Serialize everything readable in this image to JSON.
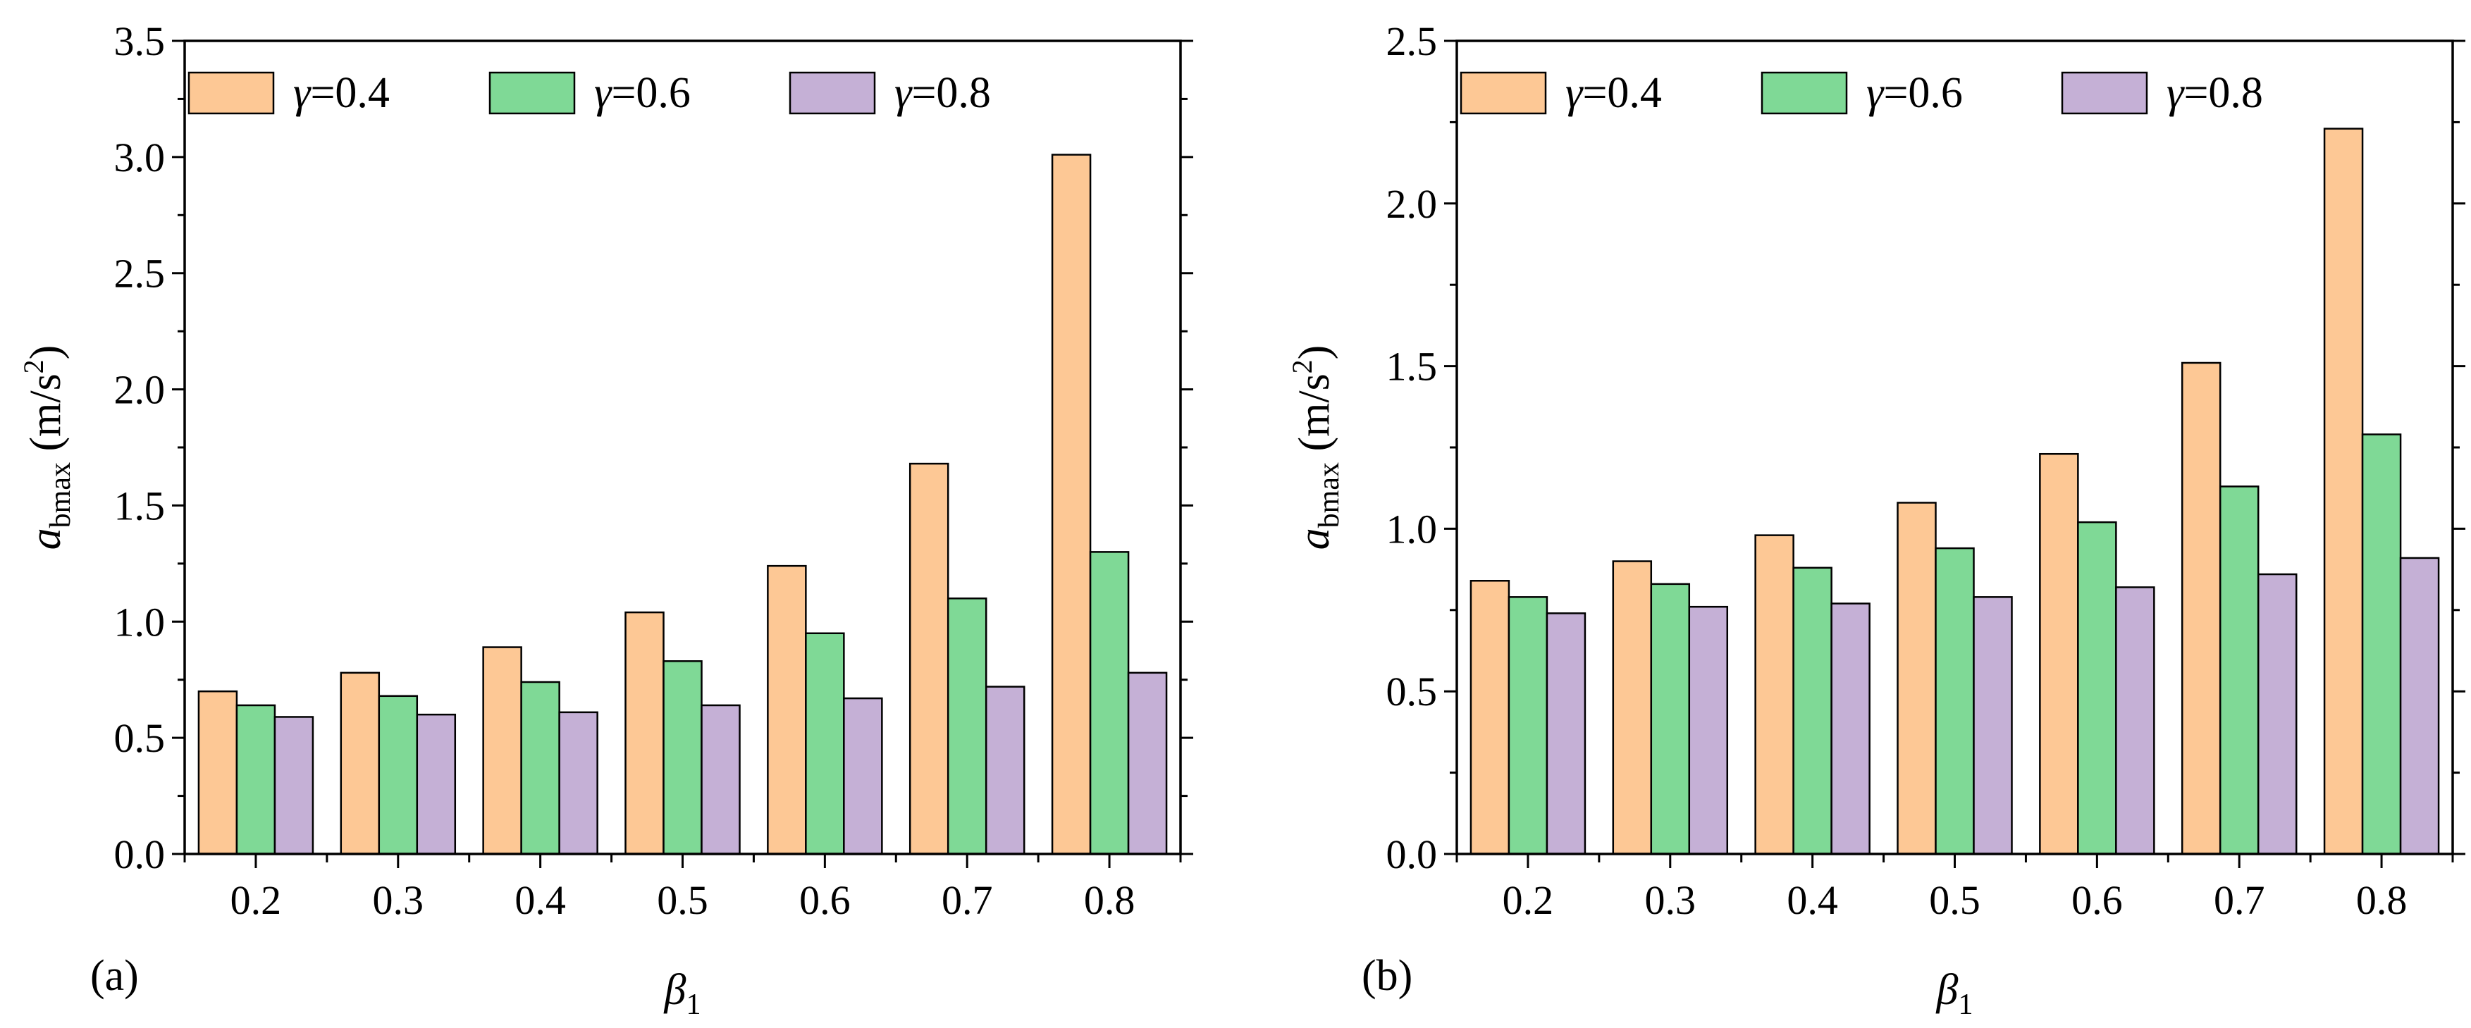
{
  "chart_data": [
    {
      "type": "bar",
      "panel_label": "(a)",
      "categories": [
        "0.2",
        "0.3",
        "0.4",
        "0.5",
        "0.6",
        "0.7",
        "0.8"
      ],
      "xlabel": {
        "symbol": "β",
        "subscript": "1"
      },
      "ylabel": {
        "symbol": "a",
        "subscript": "bmax",
        "unit": "(m/s",
        "unit_sup": "2",
        "unit_close": ")"
      },
      "ylim": [
        0,
        3.5
      ],
      "yticks": [
        "0.0",
        "0.5",
        "1.0",
        "1.5",
        "2.0",
        "2.5",
        "3.0",
        "3.5"
      ],
      "legend_position": "top",
      "series": [
        {
          "name": "γ=0.4",
          "symbol": "γ",
          "value_text": "=0.4",
          "color": "#FDC895",
          "values": [
            0.7,
            0.78,
            0.89,
            1.04,
            1.24,
            1.68,
            3.01
          ]
        },
        {
          "name": "γ=0.6",
          "symbol": "γ",
          "value_text": "=0.6",
          "color": "#7FD996",
          "values": [
            0.64,
            0.68,
            0.74,
            0.83,
            0.95,
            1.1,
            1.3
          ]
        },
        {
          "name": "γ=0.8",
          "symbol": "γ",
          "value_text": "=0.8",
          "color": "#C5B0D6",
          "values": [
            0.59,
            0.6,
            0.61,
            0.64,
            0.67,
            0.72,
            0.78
          ]
        }
      ]
    },
    {
      "type": "bar",
      "panel_label": "(b)",
      "categories": [
        "0.2",
        "0.3",
        "0.4",
        "0.5",
        "0.6",
        "0.7",
        "0.8"
      ],
      "xlabel": {
        "symbol": "β",
        "subscript": "1"
      },
      "ylabel": {
        "symbol": "a",
        "subscript": "bmax",
        "unit": "(m/s",
        "unit_sup": "2",
        "unit_close": ")"
      },
      "ylim": [
        0,
        2.5
      ],
      "yticks": [
        "0.0",
        "0.5",
        "1.0",
        "1.5",
        "2.0",
        "2.5"
      ],
      "legend_position": "top",
      "series": [
        {
          "name": "γ=0.4",
          "symbol": "γ",
          "value_text": "=0.4",
          "color": "#FDC895",
          "values": [
            0.84,
            0.9,
            0.98,
            1.08,
            1.23,
            1.51,
            2.23
          ]
        },
        {
          "name": "γ=0.6",
          "symbol": "γ",
          "value_text": "=0.6",
          "color": "#7FD996",
          "values": [
            0.79,
            0.83,
            0.88,
            0.94,
            1.02,
            1.13,
            1.29
          ]
        },
        {
          "name": "γ=0.8",
          "symbol": "γ",
          "value_text": "=0.8",
          "color": "#C5B0D6",
          "values": [
            0.74,
            0.76,
            0.77,
            0.79,
            0.82,
            0.86,
            0.91
          ]
        }
      ]
    }
  ]
}
